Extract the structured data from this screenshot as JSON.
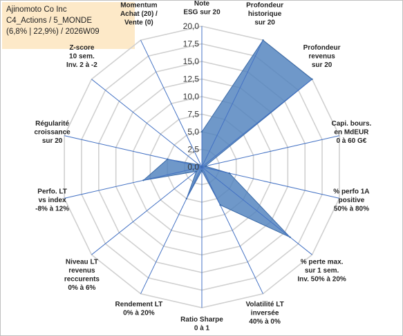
{
  "title_lines": [
    "Ajinomoto Co Inc",
    "C4_Actions / 5_MONDE",
    "(6,8% | 22,9%) / 2026W09"
  ],
  "colors": {
    "fill": "#4f81bd",
    "axis": "#4472c4",
    "grid": "#d0d0d0",
    "title_bg": "#fde9c8"
  },
  "chart_data": {
    "type": "radar",
    "r_min": 0,
    "r_max": 20,
    "r_step": 2.5,
    "tick_labels": [
      "0,0",
      "2,5",
      "5,0",
      "7,5",
      "10,0",
      "12,5",
      "15,0",
      "17,5",
      "20,0"
    ],
    "axes": [
      {
        "label": [
          "Note",
          "ESG sur 20"
        ],
        "value": 5.0
      },
      {
        "label": [
          "Profondeur",
          "historique",
          "sur 20"
        ],
        "value": 20.0
      },
      {
        "label": [
          "Profondeur",
          "revenus",
          "sur 20"
        ],
        "value": 20.0
      },
      {
        "label": [
          "Capi. bours.",
          "en MdEUR",
          "0 à 60 G€"
        ],
        "value": 0.5
      },
      {
        "label": [
          "% perfo 1A",
          "positive",
          "50% à 80%"
        ],
        "value": 4.0
      },
      {
        "label": [
          "% perte max.",
          "sur 1 sem.",
          "Inv. 50% à 20%"
        ],
        "value": 16.0
      },
      {
        "label": [
          "Volatilité LT",
          "inversée",
          "40% à 0%"
        ],
        "value": 6.0
      },
      {
        "label": [
          "Ratio Sharpe",
          "0 à 1"
        ],
        "value": 0.5
      },
      {
        "label": [
          "Rendement LT",
          "0% à 20%"
        ],
        "value": 5.0
      },
      {
        "label": [
          "Niveau LT",
          "revenus",
          "reccurents",
          "0% à 6%"
        ],
        "value": 1.0
      },
      {
        "label": [
          "Perfo. LT",
          "vs index",
          "-8% à 12%"
        ],
        "value": 8.5
      },
      {
        "label": [
          "Régularité",
          "croissance",
          "sur 20"
        ],
        "value": 5.0
      },
      {
        "label": [
          "Z-score",
          "10 sem.",
          "Inv. 2 à -2"
        ],
        "value": 0.5
      },
      {
        "label": [
          "Momentum",
          "Achat (20) /",
          "Vente (0)"
        ],
        "value": 0.0
      }
    ]
  }
}
